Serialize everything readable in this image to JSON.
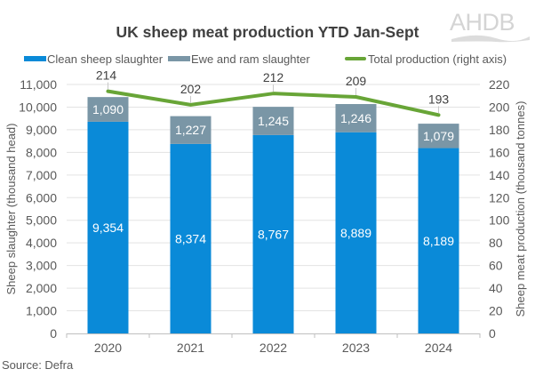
{
  "title": "UK sheep meat production YTD Jan-Sept",
  "logo": "AHDB",
  "legend": [
    {
      "label": "Clean sheep slaughter",
      "color": "#0a8ad8",
      "kind": "bar"
    },
    {
      "label": "Ewe and ram slaughter",
      "color": "#7a96a6",
      "kind": "bar"
    },
    {
      "label": "Total production (right axis)",
      "color": "#68a537",
      "kind": "line"
    }
  ],
  "source": "Source: Defra",
  "colors": {
    "clean": "#0a8ad8",
    "ewe": "#7a96a6",
    "line": "#68a537",
    "grid": "#e3e3e3",
    "axis": "#bfbfbf",
    "tick_text": "#595959",
    "bar_label": "#ffffff",
    "line_label": "#404040"
  },
  "chart_data": {
    "type": "bar",
    "subtype": "stacked bar + line (dual axis)",
    "title": "UK sheep meat production YTD Jan-Sept",
    "categories": [
      "2020",
      "2021",
      "2022",
      "2023",
      "2024"
    ],
    "series": [
      {
        "name": "Clean sheep slaughter",
        "type": "bar",
        "axis": "left",
        "stack": "slaughter",
        "values": [
          9354,
          8374,
          8767,
          8889,
          8189
        ]
      },
      {
        "name": "Ewe and ram slaughter",
        "type": "bar",
        "axis": "left",
        "stack": "slaughter",
        "values": [
          1090,
          1227,
          1245,
          1246,
          1079
        ]
      },
      {
        "name": "Total production (right axis)",
        "type": "line",
        "axis": "right",
        "values": [
          214,
          202,
          212,
          209,
          193
        ]
      }
    ],
    "value_labels": {
      "Clean sheep slaughter": [
        "9,354",
        "8,374",
        "8,767",
        "8,889",
        "8,189"
      ],
      "Ewe and ram slaughter": [
        "1,090",
        "1,227",
        "1,245",
        "1,246",
        "1,079"
      ],
      "Total production (right axis)": [
        "214",
        "202",
        "212",
        "209",
        "193"
      ]
    },
    "xlabel": "",
    "ylabel": "Sheep slaughter (thousand head)",
    "y2label": "Sheep meat production (thousand tonnes)",
    "ylim": [
      0,
      11000
    ],
    "y2lim": [
      0,
      220
    ],
    "yticks": [
      "0",
      "1,000",
      "2,000",
      "3,000",
      "4,000",
      "5,000",
      "6,000",
      "7,000",
      "8,000",
      "9,000",
      "10,000",
      "11,000"
    ],
    "y2ticks": [
      "0",
      "20",
      "40",
      "60",
      "80",
      "100",
      "120",
      "140",
      "160",
      "180",
      "200",
      "220"
    ],
    "grid": true,
    "legend_position": "top"
  }
}
